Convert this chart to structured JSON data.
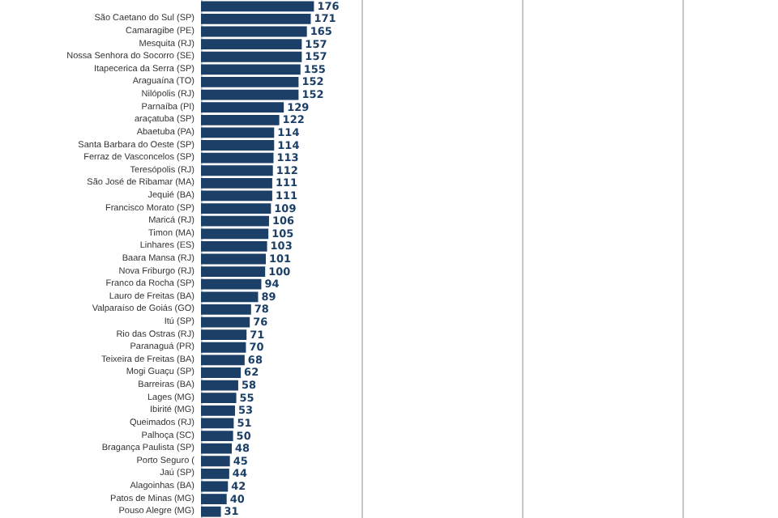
{
  "chart_data": {
    "type": "bar",
    "orientation": "horizontal",
    "categories": [
      null,
      "São Caetano do Sul (SP)",
      "Camaragibe (PE)",
      "Mesquita (RJ)",
      "Nossa Senhora do Socorro (SE)",
      "Itapecerica da Serra (SP)",
      "Araguaína (TO)",
      "Nilópolis (RJ)",
      "Parnaíba (PI)",
      "araçatuba (SP)",
      "Abaetuba (PA)",
      "Santa Barbara do Oeste (SP)",
      "Ferraz de Vasconcelos (SP)",
      "Teresópolis (RJ)",
      "São José de Ribamar (MA)",
      "Jequié (BA)",
      "Francisco Morato (SP)",
      "Maricá (RJ)",
      "Timon (MA)",
      "Linhares (ES)",
      "Baara Mansa (RJ)",
      "Nova Friburgo (RJ)",
      "Franco da Rocha (SP)",
      "Lauro de Freitas (BA)",
      "Valparaíso de Goiás (GO)",
      "Itú (SP)",
      "Rio das Ostras (RJ)",
      "Paranaguá (PR)",
      "Teixeira de Freitas (BA)",
      "Mogi Guaçu (SP)",
      "Barreiras (BA)",
      "Lages (MG)",
      "Ibirité (MG)",
      "Queimados (RJ)",
      "Palhoça (SC)",
      "Bragança Paulista (SP)",
      "Porto Seguro (",
      "Jaú (SP)",
      "Alagoinhas (BA)",
      "Patos de Minas (MG)",
      "Pouso Alegre (MG)"
    ],
    "values": [
      176,
      171,
      165,
      157,
      157,
      155,
      152,
      152,
      129,
      122,
      114,
      114,
      113,
      112,
      111,
      111,
      109,
      106,
      105,
      103,
      101,
      100,
      94,
      89,
      78,
      76,
      71,
      70,
      68,
      62,
      58,
      55,
      53,
      51,
      50,
      48,
      45,
      44,
      42,
      40,
      31
    ],
    "color": "#1b3f66",
    "data_labels": true,
    "xlim": [
      0,
      750
    ],
    "xticks": [
      {
        "value": 250,
        "label": null
      },
      {
        "value": 500,
        "label": null
      },
      {
        "value": 750,
        "label": null
      }
    ],
    "grid": "x",
    "tick_labels": "y"
  }
}
